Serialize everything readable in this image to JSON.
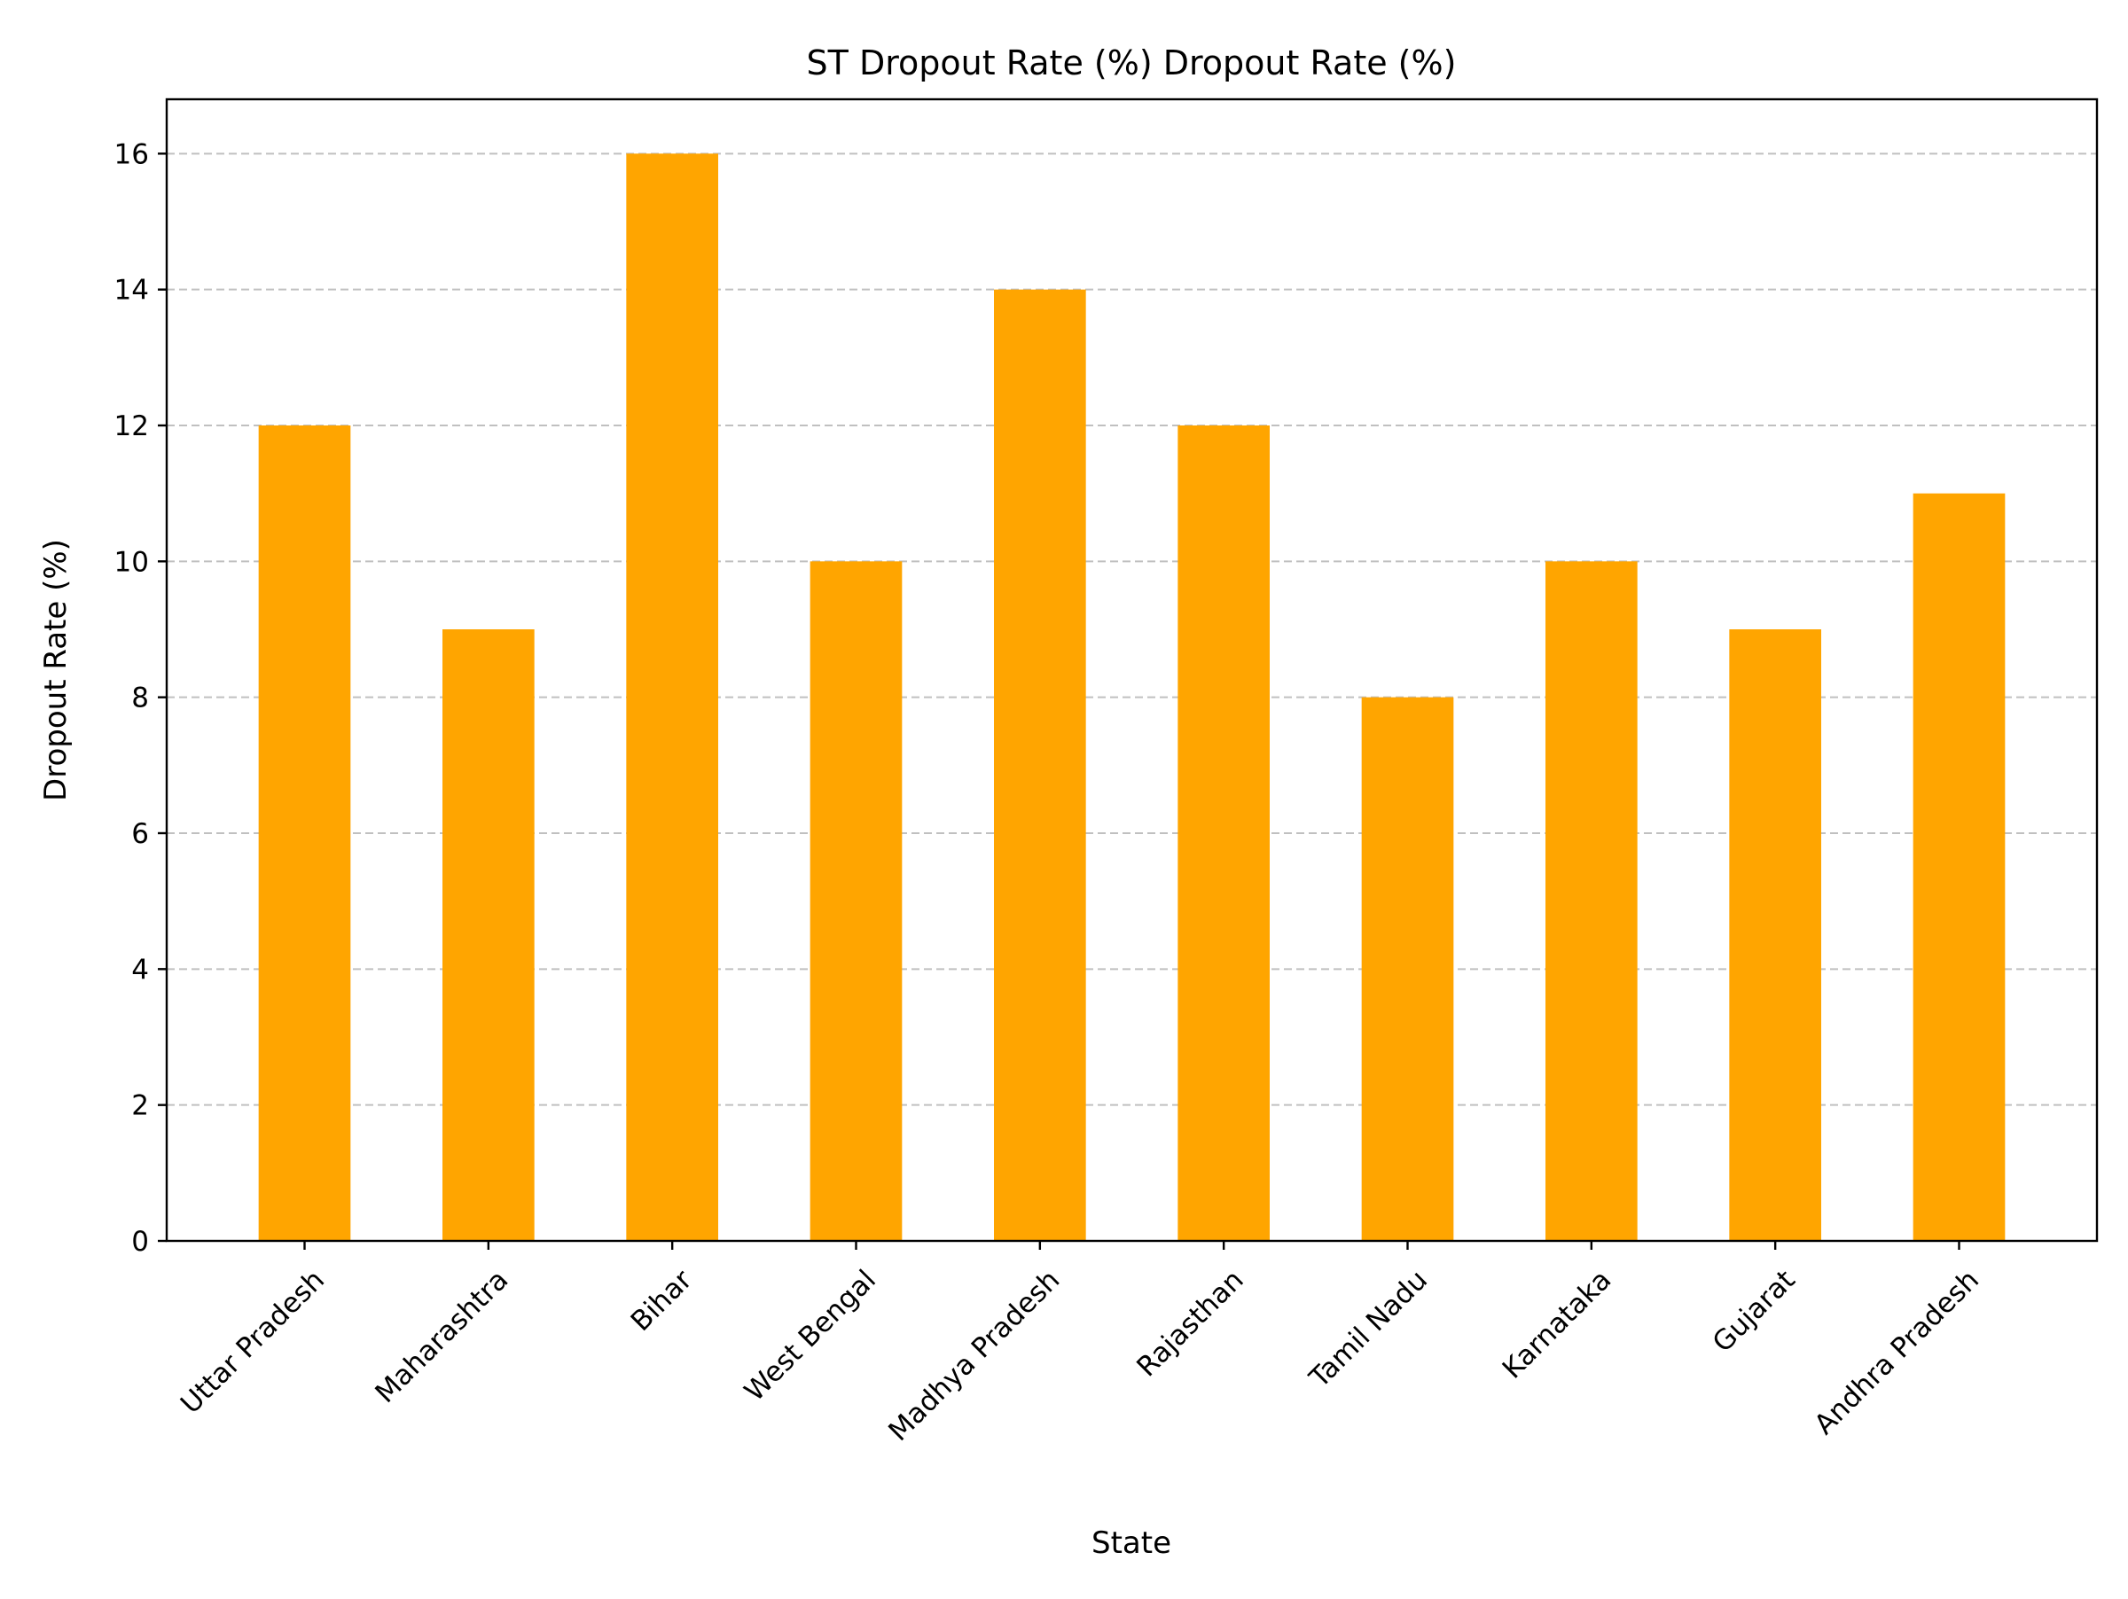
{
  "chart_data": {
    "type": "bar",
    "title": "ST Dropout Rate (%) Dropout Rate (%)",
    "xlabel": "State",
    "ylabel": "Dropout Rate (%)",
    "categories": [
      "Uttar Pradesh",
      "Maharashtra",
      "Bihar",
      "West Bengal",
      "Madhya Pradesh",
      "Rajasthan",
      "Tamil Nadu",
      "Karnataka",
      "Gujarat",
      "Andhra Pradesh"
    ],
    "values": [
      12,
      9,
      16,
      10,
      14,
      12,
      8,
      10,
      9,
      11
    ],
    "ylim": [
      0,
      16.8
    ],
    "yticks": [
      0,
      2,
      4,
      6,
      8,
      10,
      12,
      14,
      16
    ],
    "grid": "y-dashed",
    "bar_color": "#ffa500",
    "grid_color": "#c0c0c0"
  }
}
